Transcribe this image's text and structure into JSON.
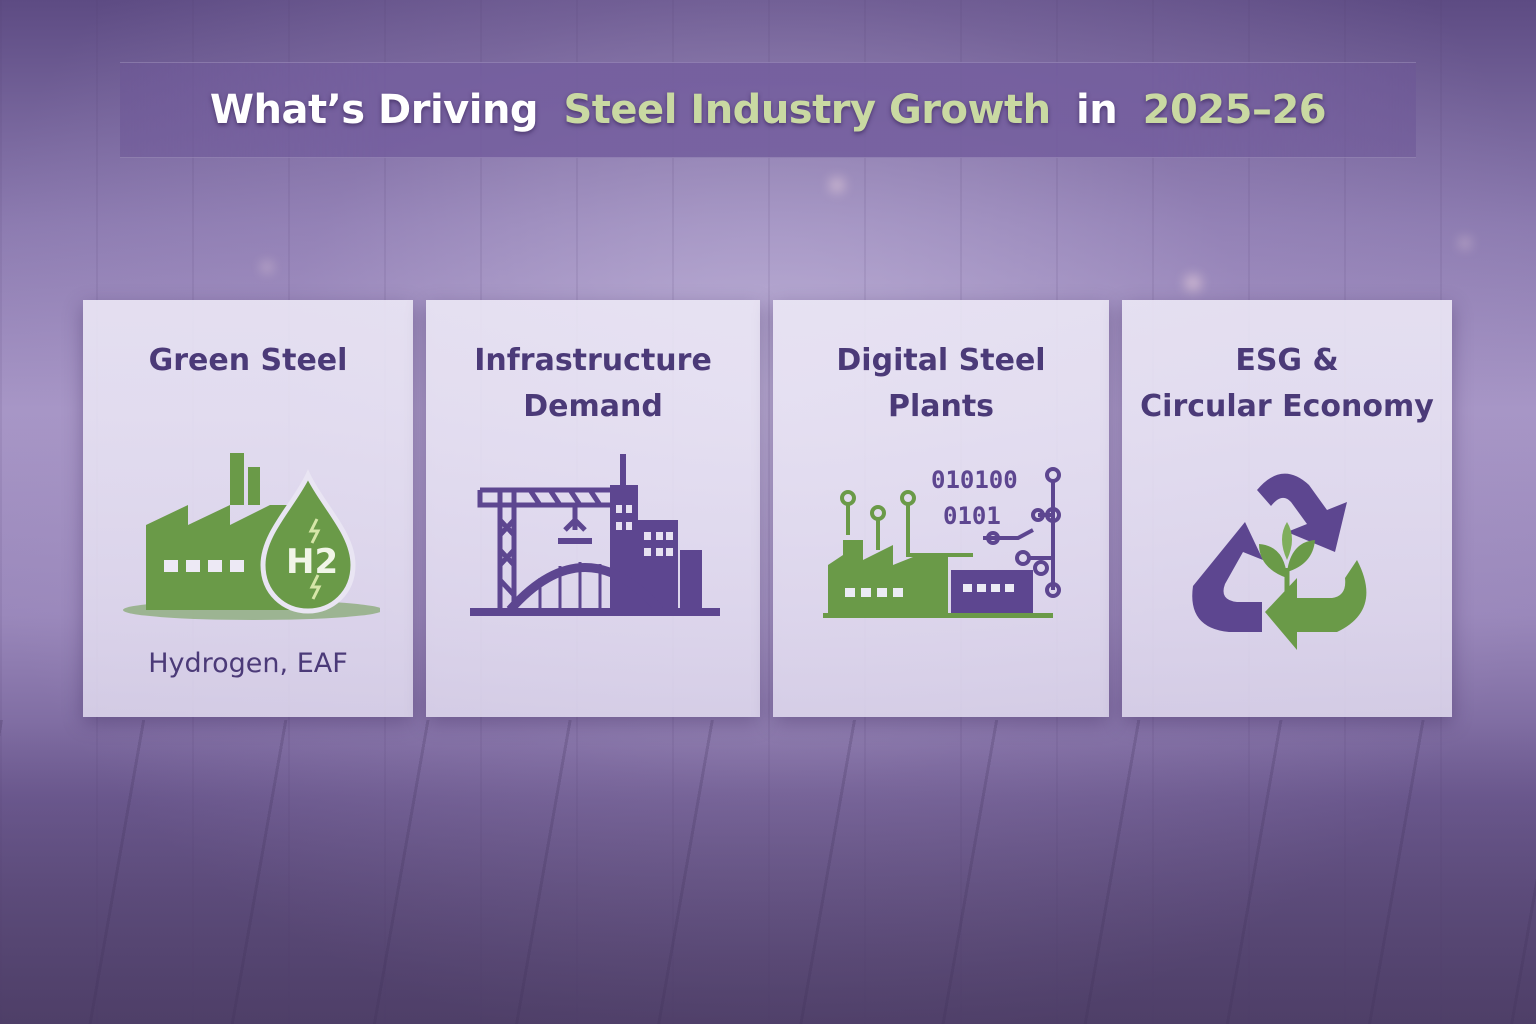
{
  "header": {
    "title_part1": "What’s Driving",
    "title_highlight1": "Steel Industry Growth",
    "title_part2": "in",
    "title_highlight2": "2025–26"
  },
  "cards": [
    {
      "title_line1": "Green Steel",
      "title_line2": "",
      "subtitle": "Hydrogen, EAF",
      "icon": "factory-hydrogen-icon"
    },
    {
      "title_line1": "Infrastructure",
      "title_line2": "Demand",
      "subtitle": "",
      "icon": "city-crane-bridge-icon"
    },
    {
      "title_line1": "Digital Steel",
      "title_line2": "Plants",
      "subtitle": "",
      "icon": "digital-factory-icon"
    },
    {
      "title_line1": "ESG &",
      "title_line2": "Circular Economy",
      "subtitle": "",
      "icon": "recycle-leaf-icon"
    }
  ],
  "icon_text": {
    "h2_label": "H2",
    "binary_line1": "010100",
    "binary_line2": "0101"
  },
  "colors": {
    "accent_green": "#6a9a48",
    "accent_purple": "#5d4690",
    "title_highlight": "#c9d9a2",
    "card_title": "#4b3a78"
  }
}
